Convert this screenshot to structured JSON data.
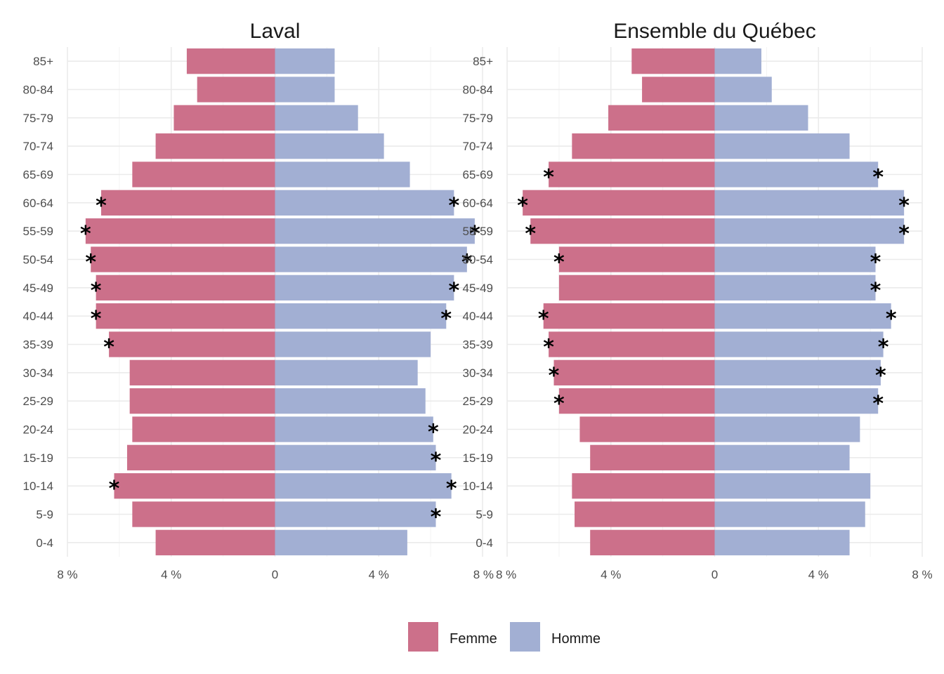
{
  "chart_data": [
    {
      "type": "bar",
      "orientation": "horizontal-population-pyramid",
      "title": "Laval",
      "categories": [
        "0-4",
        "5-9",
        "10-14",
        "15-19",
        "20-24",
        "25-29",
        "30-34",
        "35-39",
        "40-44",
        "45-49",
        "50-54",
        "55-59",
        "60-64",
        "65-69",
        "70-74",
        "75-79",
        "80-84",
        "85+"
      ],
      "xlim": [
        -8,
        8
      ],
      "x_ticks": [
        -8,
        -4,
        0,
        4,
        8
      ],
      "x_tick_labels": [
        "8 %",
        "4 %",
        "0",
        "4 %",
        "8 %"
      ],
      "series": [
        {
          "name": "Femme",
          "color": "#cc708a",
          "values": [
            4.6,
            5.5,
            6.2,
            5.7,
            5.5,
            5.6,
            5.6,
            6.4,
            6.9,
            6.9,
            7.1,
            7.3,
            6.7,
            5.5,
            4.6,
            3.9,
            3.0,
            3.4
          ],
          "significant": [
            false,
            false,
            true,
            false,
            false,
            false,
            false,
            true,
            true,
            true,
            true,
            true,
            true,
            false,
            false,
            false,
            false,
            false
          ]
        },
        {
          "name": "Homme",
          "color": "#a2afd3",
          "values": [
            5.1,
            6.2,
            6.8,
            6.2,
            6.1,
            5.8,
            5.5,
            6.0,
            6.6,
            6.9,
            7.4,
            7.7,
            6.9,
            5.2,
            4.2,
            3.2,
            2.3,
            2.3
          ],
          "significant": [
            false,
            true,
            true,
            true,
            true,
            false,
            false,
            false,
            true,
            true,
            true,
            true,
            true,
            false,
            false,
            false,
            false,
            false
          ]
        }
      ],
      "marker": "*"
    },
    {
      "type": "bar",
      "orientation": "horizontal-population-pyramid",
      "title": "Ensemble du Québec",
      "categories": [
        "0-4",
        "5-9",
        "10-14",
        "15-19",
        "20-24",
        "25-29",
        "30-34",
        "35-39",
        "40-44",
        "45-49",
        "50-54",
        "55-59",
        "60-64",
        "65-69",
        "70-74",
        "75-79",
        "80-84",
        "85+"
      ],
      "xlim": [
        -8,
        8
      ],
      "x_ticks": [
        -8,
        -4,
        0,
        4,
        8
      ],
      "x_tick_labels": [
        "8 %",
        "4 %",
        "0",
        "4 %",
        "8 %"
      ],
      "series": [
        {
          "name": "Femme",
          "color": "#cc708a",
          "values": [
            4.8,
            5.4,
            5.5,
            4.8,
            5.2,
            6.0,
            6.2,
            6.4,
            6.6,
            6.0,
            6.0,
            7.1,
            7.4,
            6.4,
            5.5,
            4.1,
            2.8,
            3.2
          ],
          "significant": [
            false,
            false,
            false,
            false,
            false,
            true,
            true,
            true,
            true,
            false,
            true,
            true,
            true,
            true,
            false,
            false,
            false,
            false
          ]
        },
        {
          "name": "Homme",
          "color": "#a2afd3",
          "values": [
            5.2,
            5.8,
            6.0,
            5.2,
            5.6,
            6.3,
            6.4,
            6.5,
            6.8,
            6.2,
            6.2,
            7.3,
            7.3,
            6.3,
            5.2,
            3.6,
            2.2,
            1.8
          ],
          "significant": [
            false,
            false,
            false,
            false,
            false,
            true,
            true,
            true,
            true,
            true,
            true,
            true,
            true,
            true,
            false,
            false,
            false,
            false
          ]
        }
      ],
      "marker": "*"
    }
  ],
  "legend": {
    "position": "bottom",
    "items": [
      {
        "label": "Femme",
        "color": "#cc708a"
      },
      {
        "label": "Homme",
        "color": "#a2afd3"
      }
    ]
  },
  "grid": true
}
